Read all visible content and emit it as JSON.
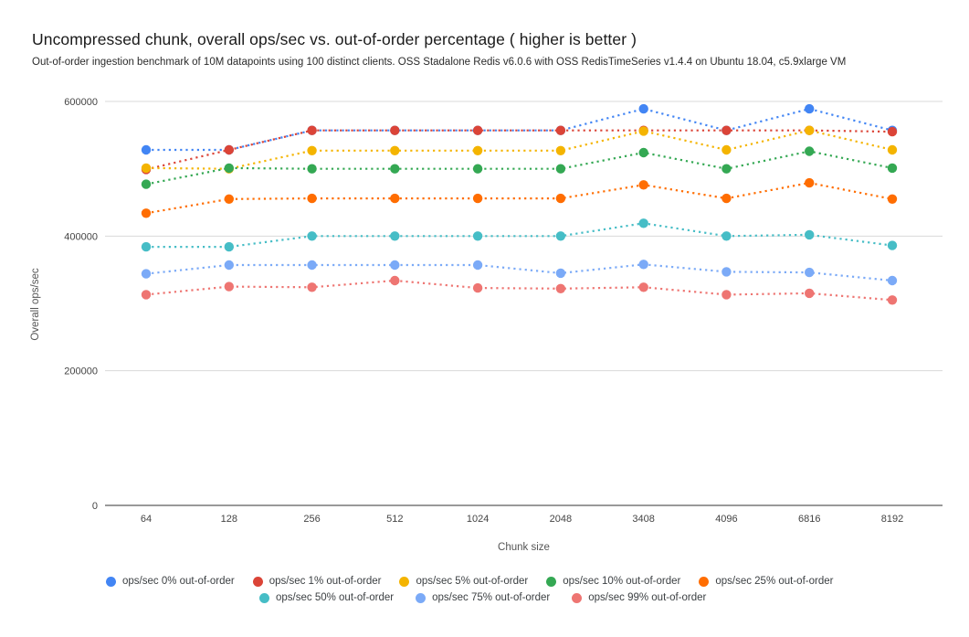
{
  "chart_data": {
    "type": "line",
    "line_style": "dotted-with-round-markers",
    "title": "Uncompressed chunk, overall ops/sec vs. out-of-order percentage ( higher is better )",
    "subtitle": "Out-of-order ingestion benchmark of 10M datapoints using 100 distinct clients. OSS Stadalone Redis v6.0.6 with OSS RedisTimeSeries v1.4.4 on Ubuntu 18.04, c5.9xlarge VM",
    "xlabel": "Chunk size",
    "ylabel": "Overall ops/sec",
    "categories": [
      "64",
      "128",
      "256",
      "512",
      "1024",
      "2048",
      "3408",
      "4096",
      "6816",
      "8192"
    ],
    "y_ticks": [
      {
        "value": 0,
        "label": "0"
      },
      {
        "value": 200000,
        "label": "200000"
      },
      {
        "value": 400000,
        "label": "400000"
      },
      {
        "value": 600000,
        "label": "600000"
      }
    ],
    "ylim": [
      0,
      600000
    ],
    "grid": "horizontal-only",
    "legend_position": "bottom",
    "legend_rows": [
      [
        0,
        1,
        2,
        3,
        4
      ],
      [
        5,
        6,
        7
      ]
    ],
    "series": [
      {
        "name": "ops/sec 0% out-of-order",
        "color": "#4285F4",
        "values": [
          528000,
          528000,
          557000,
          557000,
          557000,
          557000,
          589000,
          557000,
          589000,
          557000
        ]
      },
      {
        "name": "ops/sec 1% out-of-order",
        "color": "#DB4437",
        "values": [
          499000,
          528000,
          557000,
          557000,
          557000,
          557000,
          557000,
          557000,
          557000,
          555000
        ]
      },
      {
        "name": "ops/sec 5% out-of-order",
        "color": "#F4B400",
        "values": [
          501000,
          500000,
          527000,
          527000,
          527000,
          527000,
          556000,
          528000,
          557000,
          528000
        ]
      },
      {
        "name": "ops/sec 10% out-of-order",
        "color": "#34A853",
        "values": [
          477000,
          501000,
          500000,
          500000,
          500000,
          500000,
          524000,
          500000,
          526000,
          501000
        ]
      },
      {
        "name": "ops/sec 25% out-of-order",
        "color": "#FF6D01",
        "values": [
          434000,
          455000,
          456000,
          456000,
          456000,
          456000,
          476000,
          456000,
          479000,
          455000
        ]
      },
      {
        "name": "ops/sec 50% out-of-order",
        "color": "#46BDC6",
        "values": [
          384000,
          384000,
          400000,
          400000,
          400000,
          400000,
          419000,
          400000,
          402000,
          386000
        ]
      },
      {
        "name": "ops/sec 75% out-of-order",
        "color": "#7BAAF7",
        "values": [
          344000,
          357000,
          357000,
          357000,
          357000,
          345000,
          358000,
          347000,
          346000,
          334000
        ]
      },
      {
        "name": "ops/sec 99% out-of-order",
        "color": "#EE7572",
        "values": [
          313000,
          325000,
          324000,
          334000,
          323000,
          322000,
          324000,
          313000,
          315000,
          305000
        ]
      }
    ]
  }
}
